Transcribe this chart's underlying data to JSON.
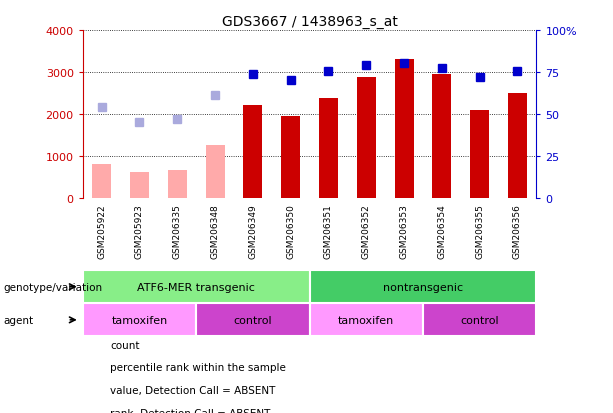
{
  "title": "GDS3667 / 1438963_s_at",
  "samples": [
    "GSM205922",
    "GSM205923",
    "GSM206335",
    "GSM206348",
    "GSM206349",
    "GSM206350",
    "GSM206351",
    "GSM206352",
    "GSM206353",
    "GSM206354",
    "GSM206355",
    "GSM206356"
  ],
  "count_values": [
    800,
    620,
    670,
    1260,
    2220,
    1940,
    2380,
    2870,
    3300,
    2950,
    2100,
    2490
  ],
  "count_absent": [
    true,
    true,
    true,
    true,
    false,
    false,
    false,
    false,
    false,
    false,
    false,
    false
  ],
  "percentile_rank": [
    null,
    null,
    null,
    null,
    2950,
    2820,
    3020,
    3160,
    3220,
    3100,
    2880,
    3020
  ],
  "percentile_absent_rank": [
    2170,
    1800,
    1880,
    2460,
    null,
    null,
    null,
    null,
    null,
    null,
    null,
    null
  ],
  "ylim_left": [
    0,
    4000
  ],
  "yticks_left": [
    0,
    1000,
    2000,
    3000,
    4000
  ],
  "ytick_labels_right": [
    "0",
    "25",
    "50",
    "75",
    "100%"
  ],
  "color_count_present": "#cc0000",
  "color_count_absent": "#ffaaaa",
  "color_rank_present": "#0000cc",
  "color_rank_absent": "#aaaadd",
  "color_sample_bg": "#cccccc",
  "genotype_groups": [
    {
      "label": "ATF6-MER transgenic",
      "start": 0,
      "end": 6,
      "color": "#88ee88"
    },
    {
      "label": "nontransgenic",
      "start": 6,
      "end": 12,
      "color": "#44cc66"
    }
  ],
  "agent_groups": [
    {
      "label": "tamoxifen",
      "start": 0,
      "end": 3,
      "color": "#ff99ff"
    },
    {
      "label": "control",
      "start": 3,
      "end": 6,
      "color": "#cc44cc"
    },
    {
      "label": "tamoxifen",
      "start": 6,
      "end": 9,
      "color": "#ff99ff"
    },
    {
      "label": "control",
      "start": 9,
      "end": 12,
      "color": "#cc44cc"
    }
  ],
  "legend_items": [
    {
      "label": "count",
      "color": "#cc0000"
    },
    {
      "label": "percentile rank within the sample",
      "color": "#0000cc"
    },
    {
      "label": "value, Detection Call = ABSENT",
      "color": "#ffaaaa"
    },
    {
      "label": "rank, Detection Call = ABSENT",
      "color": "#aaaadd"
    }
  ],
  "background_color": "#ffffff",
  "bar_width": 0.5,
  "marker_size": 6
}
